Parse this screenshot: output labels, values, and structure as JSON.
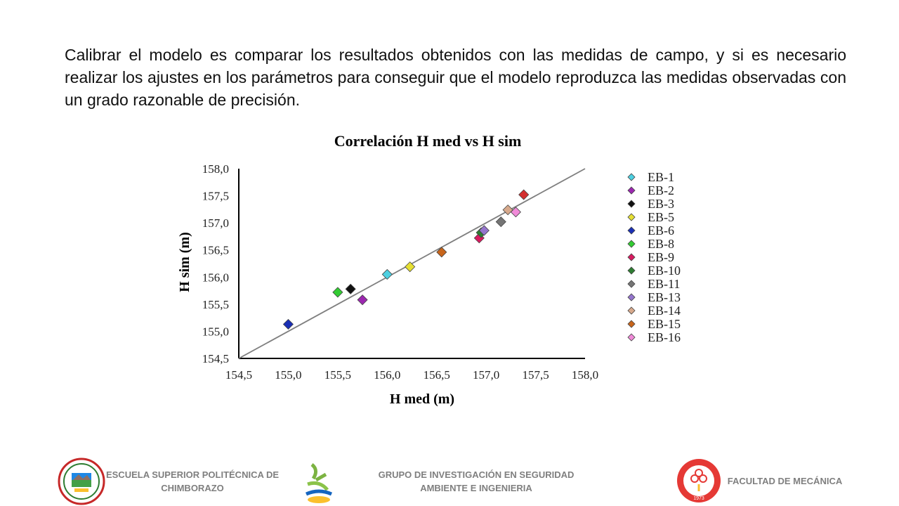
{
  "intro_text": "Calibrar el modelo es comparar los resultados obtenidos con las medidas de campo, y si es necesario realizar los ajustes en los parámetros para conseguir que el modelo reproduzca las medidas observadas con un grado razonable de precisión.",
  "chart_data": {
    "type": "scatter",
    "title": "Correlación  H med vs H sim",
    "xlabel": "H med  (m)",
    "ylabel": "H sim (m)",
    "xlim": [
      154.5,
      158.0
    ],
    "ylim": [
      154.5,
      158.0
    ],
    "x_ticks": [
      "154,5",
      "155,0",
      "155,5",
      "156,0",
      "156,5",
      "157,0",
      "157,5",
      "158,0"
    ],
    "y_ticks": [
      "154,5",
      "155,0",
      "155,5",
      "156,0",
      "156,5",
      "157,0",
      "157,5",
      "158,0"
    ],
    "grid": false,
    "legend_position": "right",
    "reference_line": {
      "from": [
        154.5,
        154.5
      ],
      "to": [
        158.0,
        158.0
      ],
      "color": "#7f7f7f"
    },
    "series": [
      {
        "name": "EB-1",
        "color": "#4dd0e1",
        "points": [
          [
            156.0,
            156.05
          ]
        ]
      },
      {
        "name": "EB-2",
        "color": "#9c27b0",
        "points": [
          [
            155.75,
            155.58
          ]
        ]
      },
      {
        "name": "EB-3",
        "color": "#111111",
        "points": [
          [
            155.63,
            155.78
          ]
        ]
      },
      {
        "name": "EB-5",
        "color": "#e6e033",
        "points": [
          [
            156.23,
            156.19
          ]
        ]
      },
      {
        "name": "EB-6",
        "color": "#1a2fb5",
        "points": [
          [
            155.0,
            155.13
          ]
        ]
      },
      {
        "name": "EB-8",
        "color": "#33cc33",
        "points": [
          [
            155.5,
            155.72
          ]
        ]
      },
      {
        "name": "EB-9",
        "color": "#d81b60",
        "points": [
          [
            156.93,
            156.72
          ]
        ]
      },
      {
        "name": "EB-10",
        "color": "#2e7d32",
        "points": [
          [
            156.95,
            156.82
          ]
        ]
      },
      {
        "name": "EB-11",
        "color": "#757575",
        "points": [
          [
            157.15,
            157.02
          ]
        ]
      },
      {
        "name": "EB-13",
        "color": "#9575cd",
        "points": [
          [
            156.98,
            156.86
          ]
        ]
      },
      {
        "name": "EB-14",
        "color": "#d7a98c",
        "points": [
          [
            157.22,
            157.24
          ]
        ]
      },
      {
        "name": "EB-15",
        "color": "#c8651b",
        "points": [
          [
            156.55,
            156.46
          ]
        ]
      },
      {
        "name": "EB-16",
        "color": "#f08ad8",
        "points": [
          [
            157.3,
            157.2
          ]
        ]
      },
      {
        "name": "",
        "color": "#d32f2f",
        "points": [
          [
            157.38,
            157.52
          ]
        ]
      }
    ]
  },
  "footer": {
    "left_text": "ESCUELA SUPERIOR POLITÉCNICA DE CHIMBORAZO",
    "center_text": "GRUPO DE INVESTIGACIÓN EN SEGURIDAD AMBIENTE E INGENIERIA",
    "right_text": "FACULTAD DE MECÁNICA",
    "right_logo_text": "1973"
  }
}
